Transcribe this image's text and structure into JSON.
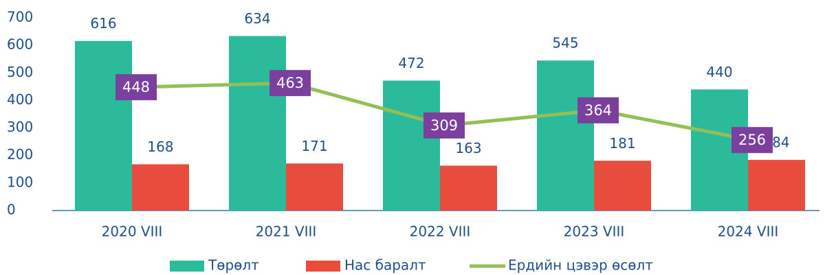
{
  "chart_data": {
    "type": "bar",
    "categories": [
      "2020 VIII",
      "2021 VIII",
      "2022 VIII",
      "2023 VIII",
      "2024 VIII"
    ],
    "series": [
      {
        "name": "Төрөлт",
        "color": "#2bbb9a",
        "type": "bar",
        "values": [
          616,
          634,
          472,
          545,
          440
        ]
      },
      {
        "name": "Нас баралт",
        "color": "#e84c3d",
        "type": "bar",
        "values": [
          168,
          171,
          163,
          181,
          184
        ]
      },
      {
        "name": "Ердийн цэвэр өсөлт",
        "color": "#93bf55",
        "type": "line",
        "label_color": "#7b3f9e",
        "values": [
          448,
          463,
          309,
          364,
          256
        ]
      }
    ],
    "ylim": [
      0,
      700
    ],
    "yticks": [
      0,
      100,
      200,
      300,
      400,
      500,
      600,
      700
    ],
    "grid": false,
    "legend": "bottom"
  }
}
